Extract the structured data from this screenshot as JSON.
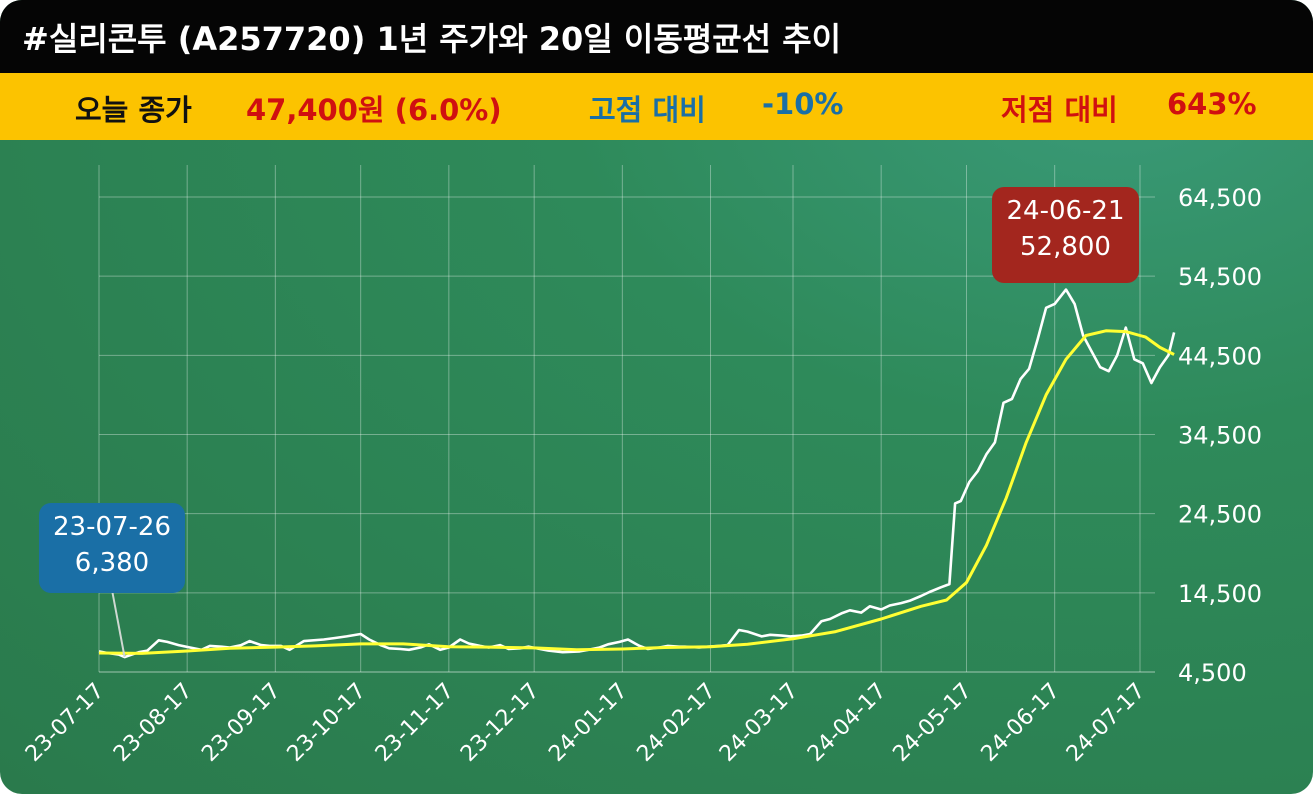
{
  "header": {
    "title": "#실리콘투 (A257720) 1년 주가와 20일 이동평균선 추이"
  },
  "summary": {
    "close_label": "오늘 종가",
    "close_value": "47,400원 (6.0%)",
    "high_label": "고점 대비",
    "high_value": "-10%",
    "low_label": "저점 대비",
    "low_value": "643%"
  },
  "colors": {
    "title_bg": "#050505",
    "info_bg": "#fcc300",
    "close_value": "#d01010",
    "high_label": "#1a6fa6",
    "low_label": "#d01010",
    "price_line": "#ffffff",
    "ma_line": "#ffff33",
    "low_tag": "#1a6fa6",
    "high_tag": "#a3261e"
  },
  "annotations": {
    "low_date": "23-07-26",
    "low_value": "6,380",
    "high_date": "24-06-21",
    "high_value": "52,800"
  },
  "chart_data": {
    "type": "line",
    "x_ticks": [
      "23-07-17",
      "23-08-17",
      "23-09-17",
      "23-10-17",
      "23-11-17",
      "23-12-17",
      "24-01-17",
      "24-02-17",
      "24-03-17",
      "24-04-17",
      "24-05-17",
      "24-06-17",
      "24-07-17"
    ],
    "y_ticks": [
      "4,500",
      "14,500",
      "24,500",
      "34,500",
      "44,500",
      "54,500",
      "64,500"
    ],
    "ylim": [
      4500,
      64500
    ],
    "grid": true,
    "series": [
      {
        "name": "",
        "values": [
          [
            "2023-07-17",
            7100
          ],
          [
            "2023-07-20",
            6900
          ],
          [
            "2023-07-24",
            6700
          ],
          [
            "2023-07-26",
            6380
          ],
          [
            "2023-07-31",
            7000
          ],
          [
            "2023-08-03",
            7200
          ],
          [
            "2023-08-07",
            8500
          ],
          [
            "2023-08-10",
            8300
          ],
          [
            "2023-08-14",
            7900
          ],
          [
            "2023-08-18",
            7600
          ],
          [
            "2023-08-22",
            7300
          ],
          [
            "2023-08-25",
            7800
          ],
          [
            "2023-08-29",
            7700
          ],
          [
            "2023-09-01",
            7600
          ],
          [
            "2023-09-05",
            7900
          ],
          [
            "2023-09-08",
            8400
          ],
          [
            "2023-09-12",
            7900
          ],
          [
            "2023-09-15",
            7800
          ],
          [
            "2023-09-19",
            7800
          ],
          [
            "2023-09-22",
            7300
          ],
          [
            "2023-09-27",
            8400
          ],
          [
            "2023-10-04",
            8600
          ],
          [
            "2023-10-08",
            8800
          ],
          [
            "2023-10-12",
            9000
          ],
          [
            "2023-10-17",
            9300
          ],
          [
            "2023-10-20",
            8600
          ],
          [
            "2023-10-24",
            7900
          ],
          [
            "2023-10-27",
            7500
          ],
          [
            "2023-10-31",
            7400
          ],
          [
            "2023-11-03",
            7300
          ],
          [
            "2023-11-07",
            7600
          ],
          [
            "2023-11-10",
            8000
          ],
          [
            "2023-11-14",
            7300
          ],
          [
            "2023-11-17",
            7600
          ],
          [
            "2023-11-21",
            8600
          ],
          [
            "2023-11-24",
            8100
          ],
          [
            "2023-11-28",
            7800
          ],
          [
            "2023-12-01",
            7600
          ],
          [
            "2023-12-05",
            7900
          ],
          [
            "2023-12-08",
            7400
          ],
          [
            "2023-12-12",
            7500
          ],
          [
            "2023-12-15",
            7700
          ],
          [
            "2023-12-19",
            7400
          ],
          [
            "2023-12-22",
            7200
          ],
          [
            "2023-12-27",
            7000
          ],
          [
            "2024-01-02",
            7100
          ],
          [
            "2024-01-05",
            7300
          ],
          [
            "2024-01-09",
            7600
          ],
          [
            "2024-01-12",
            8000
          ],
          [
            "2024-01-16",
            8300
          ],
          [
            "2024-01-19",
            8600
          ],
          [
            "2024-01-23",
            7800
          ],
          [
            "2024-01-26",
            7400
          ],
          [
            "2024-01-30",
            7600
          ],
          [
            "2024-02-02",
            7800
          ],
          [
            "2024-02-06",
            7700
          ],
          [
            "2024-02-08",
            7700
          ],
          [
            "2024-02-13",
            7600
          ],
          [
            "2024-02-16",
            7700
          ],
          [
            "2024-02-20",
            7800
          ],
          [
            "2024-02-23",
            7900
          ],
          [
            "2024-02-27",
            9800
          ],
          [
            "2024-03-01",
            9600
          ],
          [
            "2024-03-06",
            9000
          ],
          [
            "2024-03-09",
            9200
          ],
          [
            "2024-03-13",
            9100
          ],
          [
            "2024-03-16",
            9000
          ],
          [
            "2024-03-20",
            9100
          ],
          [
            "2024-03-23",
            9300
          ],
          [
            "2024-03-27",
            10900
          ],
          [
            "2024-03-30",
            11200
          ],
          [
            "2024-04-03",
            11900
          ],
          [
            "2024-04-06",
            12300
          ],
          [
            "2024-04-10",
            12000
          ],
          [
            "2024-04-13",
            12800
          ],
          [
            "2024-04-17",
            12400
          ],
          [
            "2024-04-20",
            12900
          ],
          [
            "2024-04-24",
            13200
          ],
          [
            "2024-04-27",
            13500
          ],
          [
            "2024-05-01",
            14100
          ],
          [
            "2024-05-04",
            14600
          ],
          [
            "2024-05-08",
            15200
          ],
          [
            "2024-05-11",
            15600
          ],
          [
            "2024-05-13",
            25800
          ],
          [
            "2024-05-15",
            26100
          ],
          [
            "2024-05-18",
            28500
          ],
          [
            "2024-05-21",
            29900
          ],
          [
            "2024-05-24",
            32000
          ],
          [
            "2024-05-27",
            33500
          ],
          [
            "2024-05-30",
            38500
          ],
          [
            "2024-06-02",
            39000
          ],
          [
            "2024-06-05",
            41500
          ],
          [
            "2024-06-08",
            42800
          ],
          [
            "2024-06-11",
            46500
          ],
          [
            "2024-06-14",
            50500
          ],
          [
            "2024-06-17",
            51000
          ],
          [
            "2024-06-21",
            52800
          ],
          [
            "2024-06-24",
            51000
          ],
          [
            "2024-06-27",
            47000
          ],
          [
            "2024-06-30",
            45000
          ],
          [
            "2024-07-03",
            43000
          ],
          [
            "2024-07-06",
            42500
          ],
          [
            "2024-07-09",
            44500
          ],
          [
            "2024-07-12",
            48000
          ],
          [
            "2024-07-15",
            44000
          ],
          [
            "2024-07-18",
            43500
          ],
          [
            "2024-07-21",
            41000
          ],
          [
            "2024-07-24",
            43000
          ],
          [
            "2024-07-27",
            44500
          ],
          [
            "2024-07-29",
            47400
          ]
        ]
      },
      {
        "name": "",
        "values": [
          [
            "2023-07-17",
            6900
          ],
          [
            "2023-08-01",
            6850
          ],
          [
            "2023-08-17",
            7150
          ],
          [
            "2023-09-01",
            7500
          ],
          [
            "2023-09-17",
            7650
          ],
          [
            "2023-10-01",
            7800
          ],
          [
            "2023-10-17",
            8050
          ],
          [
            "2023-11-01",
            8050
          ],
          [
            "2023-11-17",
            7700
          ],
          [
            "2023-12-01",
            7650
          ],
          [
            "2023-12-17",
            7550
          ],
          [
            "2024-01-01",
            7300
          ],
          [
            "2024-01-17",
            7400
          ],
          [
            "2024-02-01",
            7600
          ],
          [
            "2024-02-17",
            7700
          ],
          [
            "2024-03-01",
            8000
          ],
          [
            "2024-03-17",
            8700
          ],
          [
            "2024-04-01",
            9600
          ],
          [
            "2024-04-17",
            11200
          ],
          [
            "2024-05-01",
            12800
          ],
          [
            "2024-05-10",
            13600
          ],
          [
            "2024-05-17",
            15800
          ],
          [
            "2024-05-24",
            20500
          ],
          [
            "2024-05-31",
            26500
          ],
          [
            "2024-06-07",
            33500
          ],
          [
            "2024-06-14",
            39500
          ],
          [
            "2024-06-21",
            44000
          ],
          [
            "2024-06-28",
            47000
          ],
          [
            "2024-07-05",
            47600
          ],
          [
            "2024-07-12",
            47500
          ],
          [
            "2024-07-19",
            46800
          ],
          [
            "2024-07-24",
            45500
          ],
          [
            "2024-07-29",
            44600
          ]
        ]
      }
    ]
  }
}
